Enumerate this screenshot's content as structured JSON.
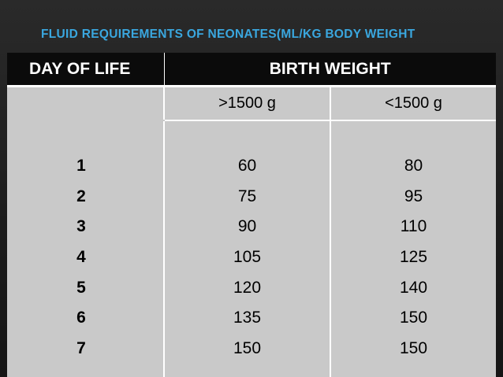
{
  "slide": {
    "title": "FLUID REQUIREMENTS OF NEONATES(ML/KG BODY WEIGHT"
  },
  "table": {
    "header_day": "DAY OF LIFE",
    "header_weight": "BIRTH WEIGHT",
    "subheader_gt": ">1500 g",
    "subheader_lt": "<1500 g",
    "days": [
      "1",
      "2",
      "3",
      "4",
      "5",
      "6",
      "7"
    ],
    "gt1500": [
      "60",
      "75",
      "90",
      "105",
      "120",
      "135",
      "150"
    ],
    "lt1500": [
      "80",
      "95",
      "110",
      "125",
      "140",
      "150",
      "150"
    ]
  },
  "colors": {
    "title": "#3aa7df",
    "header_bg": "#0b0b0b",
    "cell_bg": "#c9c9c9"
  }
}
